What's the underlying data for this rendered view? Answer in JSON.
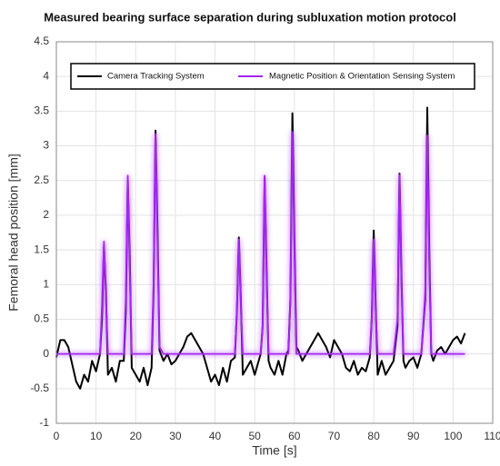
{
  "chart_data": {
    "type": "line",
    "title": "Measured bearing surface separation during subluxation motion protocol",
    "x_label": "Time [s]",
    "y_label": "Femoral head position [mm]",
    "xlim": [
      0,
      110
    ],
    "xticks": [
      0,
      10,
      20,
      30,
      40,
      50,
      60,
      70,
      80,
      90,
      100,
      110
    ],
    "ylim": [
      -1,
      4.5
    ],
    "yticks": [
      -1,
      -0.5,
      0,
      0.5,
      1,
      1.5,
      2,
      2.5,
      3,
      3.5,
      4,
      4.5
    ],
    "grid": true,
    "legend_position": "top",
    "x": [
      0,
      1,
      2,
      3,
      4,
      5,
      6,
      7,
      8,
      9,
      10,
      11,
      11.5,
      12,
      12.5,
      13,
      14,
      15,
      16,
      17,
      17.5,
      18,
      18.5,
      19,
      20,
      21,
      22,
      23,
      24,
      24.5,
      25,
      25.5,
      26,
      27,
      28,
      29,
      30,
      31,
      32,
      33,
      34,
      35,
      36,
      37,
      38,
      39,
      40,
      41,
      42,
      43,
      44,
      45,
      45.5,
      46,
      46.5,
      47,
      48,
      49,
      50,
      51,
      51.5,
      52,
      52.5,
      53,
      53.5,
      54,
      55,
      56,
      57,
      58,
      58.5,
      59,
      59.5,
      60,
      60.5,
      61,
      62,
      63,
      64,
      65,
      66,
      67,
      68,
      69,
      70,
      71,
      72,
      73,
      74,
      75,
      76,
      77,
      78,
      79,
      79.5,
      80,
      80.5,
      81,
      82,
      83,
      84,
      85,
      86,
      86.5,
      87,
      87.5,
      88,
      89,
      90,
      91,
      92,
      93,
      93.5,
      94,
      94.5,
      95,
      96,
      97,
      98,
      99,
      100,
      101,
      102,
      103
    ],
    "series": [
      {
        "name": "Camera Tracking System",
        "color": "#000000",
        "values": [
          -0.05,
          0.2,
          0.2,
          0.1,
          -0.15,
          -0.4,
          -0.5,
          -0.3,
          -0.4,
          -0.1,
          -0.25,
          0,
          0.5,
          1.55,
          0.9,
          -0.3,
          -0.2,
          -0.4,
          -0.1,
          -0.1,
          0.6,
          2.5,
          1.4,
          -0.2,
          -0.3,
          -0.4,
          -0.2,
          -0.45,
          -0.2,
          0.9,
          3.22,
          1.8,
          0.05,
          -0.1,
          0,
          -0.15,
          -0.1,
          0,
          0.1,
          0.25,
          0.3,
          0.2,
          0.1,
          0,
          -0.2,
          -0.4,
          -0.3,
          -0.45,
          -0.2,
          -0.4,
          -0.1,
          -0.05,
          0.6,
          1.68,
          0.8,
          -0.3,
          -0.2,
          -0.1,
          -0.3,
          -0.1,
          0,
          0.4,
          2.55,
          1.2,
          -0.1,
          -0.2,
          -0.3,
          -0.1,
          -0.3,
          0,
          0.05,
          0.8,
          3.47,
          1.7,
          0.1,
          0.05,
          -0.1,
          0,
          0.1,
          0.2,
          0.3,
          0.2,
          0.1,
          -0.05,
          0.2,
          0.1,
          0,
          -0.2,
          -0.25,
          -0.1,
          -0.3,
          -0.2,
          -0.25,
          -0.05,
          0.5,
          1.78,
          0.7,
          -0.3,
          -0.1,
          -0.3,
          -0.2,
          -0.1,
          0.4,
          2.6,
          1.1,
          -0.1,
          -0.2,
          -0.1,
          -0.05,
          -0.2,
          0,
          0.8,
          3.55,
          1.5,
          0,
          -0.1,
          0.05,
          0.1,
          0,
          0.1,
          0.2,
          0.25,
          0.15,
          0.3
        ]
      },
      {
        "name": "Magnetic Position & Orientation Sensing System",
        "color": "#a526f0",
        "values": [
          0,
          0,
          0,
          0,
          0,
          0,
          0,
          0,
          0,
          0,
          0,
          0,
          0.7,
          1.62,
          0.8,
          0,
          0,
          0,
          0,
          0,
          0.8,
          2.57,
          1.2,
          0,
          0,
          0,
          0,
          0,
          0,
          1.0,
          3.17,
          1.6,
          0.1,
          0,
          0,
          0,
          0,
          0,
          0,
          0,
          0,
          0,
          0,
          0,
          0,
          0,
          0,
          0,
          0,
          0,
          0,
          0,
          0.6,
          1.65,
          0.7,
          0,
          0,
          0,
          0,
          0,
          0,
          0.4,
          2.57,
          1.1,
          0,
          0,
          0,
          0,
          0,
          0,
          0,
          0.8,
          3.2,
          1.5,
          0,
          0,
          0,
          0,
          0,
          0,
          0,
          0,
          0,
          0,
          0,
          0,
          0,
          0,
          0,
          0,
          0,
          0,
          0,
          0,
          0.5,
          1.65,
          0.6,
          0,
          0,
          0,
          0,
          0,
          0.5,
          2.58,
          1.0,
          0,
          0,
          0,
          0,
          0,
          0,
          0.9,
          3.15,
          1.3,
          0,
          0,
          0,
          0,
          0,
          0,
          0,
          0,
          0,
          0
        ]
      }
    ]
  }
}
